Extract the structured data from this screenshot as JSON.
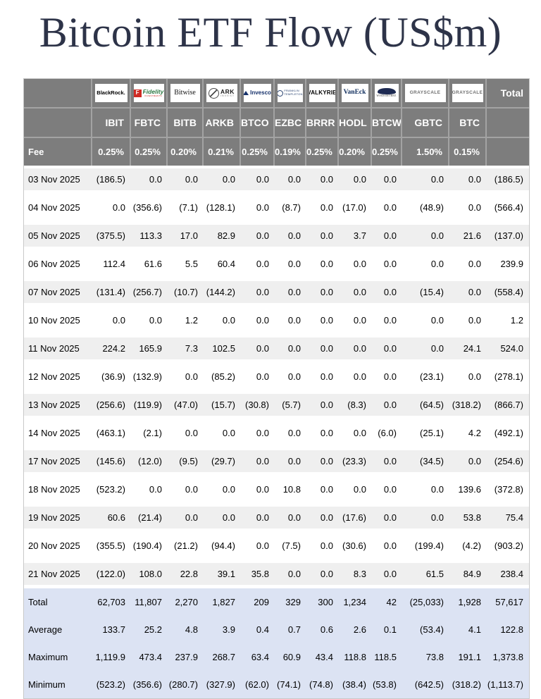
{
  "title": "Bitcoin ETF Flow (US$m)",
  "colors": {
    "negative": "#ee1111",
    "header_bg": "#7d7d7d",
    "row_alt_bg": "#efefef",
    "summary_bg": "#dce3f3",
    "title_text": "#2d3348"
  },
  "table": {
    "fee_label": "Fee",
    "total_label": "Total",
    "providers": [
      {
        "brand": "BlackRock",
        "ticker": "IBIT",
        "fee": "0.25%",
        "logo": {
          "style": "blackrock",
          "text": "BlackRock."
        }
      },
      {
        "brand": "Fidelity",
        "ticker": "FBTC",
        "fee": "0.25%",
        "logo": {
          "style": "fidelity",
          "icon_letter": "F",
          "text": "Fidelity",
          "subtext": "INVESTMENTS"
        }
      },
      {
        "brand": "Bitwise",
        "ticker": "BITB",
        "fee": "0.20%",
        "logo": {
          "style": "bitwise",
          "text": "Bitwise"
        }
      },
      {
        "brand": "ARK Invest",
        "ticker": "ARKB",
        "fee": "0.21%",
        "logo": {
          "style": "ark",
          "text": "ARK",
          "subtext": "INVEST"
        }
      },
      {
        "brand": "Invesco",
        "ticker": "BTCO",
        "fee": "0.25%",
        "logo": {
          "style": "invesco",
          "text": "Invesco"
        }
      },
      {
        "brand": "Franklin Templeton",
        "ticker": "EZBC",
        "fee": "0.19%",
        "logo": {
          "style": "franklin",
          "text": "FRANKLIN",
          "subtext": "TEMPLETON"
        }
      },
      {
        "brand": "Valkyrie",
        "ticker": "BRRR",
        "fee": "0.25%",
        "logo": {
          "style": "valkyrie",
          "text": "VALKYRIE"
        }
      },
      {
        "brand": "VanEck",
        "ticker": "HODL",
        "fee": "0.20%",
        "logo": {
          "style": "vaneck",
          "text": "VanEck"
        }
      },
      {
        "brand": "WisdomTree",
        "ticker": "BTCW",
        "fee": "0.25%",
        "logo": {
          "style": "wisdomtree",
          "text": "WISDOMTREE"
        }
      },
      {
        "brand": "Grayscale",
        "ticker": "GBTC",
        "fee": "1.50%",
        "logo": {
          "style": "grayscale",
          "text": "GRAYSCALE"
        }
      },
      {
        "brand": "Grayscale",
        "ticker": "BTC",
        "fee": "0.15%",
        "logo": {
          "style": "grayscale",
          "text": "GRAYSCALE"
        }
      }
    ],
    "rows": [
      {
        "label": "03 Nov 2025",
        "values": [
          "(186.5)",
          "0.0",
          "0.0",
          "0.0",
          "0.0",
          "0.0",
          "0.0",
          "0.0",
          "0.0",
          "0.0",
          "0.0",
          "(186.5)"
        ]
      },
      {
        "label": "04 Nov 2025",
        "values": [
          "0.0",
          "(356.6)",
          "(7.1)",
          "(128.1)",
          "0.0",
          "(8.7)",
          "0.0",
          "(17.0)",
          "0.0",
          "(48.9)",
          "0.0",
          "(566.4)"
        ]
      },
      {
        "label": "05 Nov 2025",
        "values": [
          "(375.5)",
          "113.3",
          "17.0",
          "82.9",
          "0.0",
          "0.0",
          "0.0",
          "3.7",
          "0.0",
          "0.0",
          "21.6",
          "(137.0)"
        ]
      },
      {
        "label": "06 Nov 2025",
        "values": [
          "112.4",
          "61.6",
          "5.5",
          "60.4",
          "0.0",
          "0.0",
          "0.0",
          "0.0",
          "0.0",
          "0.0",
          "0.0",
          "239.9"
        ]
      },
      {
        "label": "07 Nov 2025",
        "values": [
          "(131.4)",
          "(256.7)",
          "(10.7)",
          "(144.2)",
          "0.0",
          "0.0",
          "0.0",
          "0.0",
          "0.0",
          "(15.4)",
          "0.0",
          "(558.4)"
        ]
      },
      {
        "label": "10 Nov 2025",
        "values": [
          "0.0",
          "0.0",
          "1.2",
          "0.0",
          "0.0",
          "0.0",
          "0.0",
          "0.0",
          "0.0",
          "0.0",
          "0.0",
          "1.2"
        ]
      },
      {
        "label": "11 Nov 2025",
        "values": [
          "224.2",
          "165.9",
          "7.3",
          "102.5",
          "0.0",
          "0.0",
          "0.0",
          "0.0",
          "0.0",
          "0.0",
          "24.1",
          "524.0"
        ]
      },
      {
        "label": "12 Nov 2025",
        "values": [
          "(36.9)",
          "(132.9)",
          "0.0",
          "(85.2)",
          "0.0",
          "0.0",
          "0.0",
          "0.0",
          "0.0",
          "(23.1)",
          "0.0",
          "(278.1)"
        ]
      },
      {
        "label": "13 Nov 2025",
        "values": [
          "(256.6)",
          "(119.9)",
          "(47.0)",
          "(15.7)",
          "(30.8)",
          "(5.7)",
          "0.0",
          "(8.3)",
          "0.0",
          "(64.5)",
          "(318.2)",
          "(866.7)"
        ]
      },
      {
        "label": "14 Nov 2025",
        "values": [
          "(463.1)",
          "(2.1)",
          "0.0",
          "0.0",
          "0.0",
          "0.0",
          "0.0",
          "0.0",
          "(6.0)",
          "(25.1)",
          "4.2",
          "(492.1)"
        ]
      },
      {
        "label": "17 Nov 2025",
        "values": [
          "(145.6)",
          "(12.0)",
          "(9.5)",
          "(29.7)",
          "0.0",
          "0.0",
          "0.0",
          "(23.3)",
          "0.0",
          "(34.5)",
          "0.0",
          "(254.6)"
        ]
      },
      {
        "label": "18 Nov 2025",
        "values": [
          "(523.2)",
          "0.0",
          "0.0",
          "0.0",
          "0.0",
          "10.8",
          "0.0",
          "0.0",
          "0.0",
          "0.0",
          "139.6",
          "(372.8)"
        ]
      },
      {
        "label": "19 Nov 2025",
        "values": [
          "60.6",
          "(21.4)",
          "0.0",
          "0.0",
          "0.0",
          "0.0",
          "0.0",
          "(17.6)",
          "0.0",
          "0.0",
          "53.8",
          "75.4"
        ]
      },
      {
        "label": "20 Nov 2025",
        "values": [
          "(355.5)",
          "(190.4)",
          "(21.2)",
          "(94.4)",
          "0.0",
          "(7.5)",
          "0.0",
          "(30.6)",
          "0.0",
          "(199.4)",
          "(4.2)",
          "(903.2)"
        ]
      },
      {
        "label": "21 Nov 2025",
        "values": [
          "(122.0)",
          "108.0",
          "22.8",
          "39.1",
          "35.8",
          "0.0",
          "0.0",
          "8.3",
          "0.0",
          "61.5",
          "84.9",
          "238.4"
        ]
      }
    ],
    "summary": [
      {
        "label": "Total",
        "values": [
          "62,703",
          "11,807",
          "2,270",
          "1,827",
          "209",
          "329",
          "300",
          "1,234",
          "42",
          "(25,033)",
          "1,928",
          "57,617"
        ]
      },
      {
        "label": "Average",
        "values": [
          "133.7",
          "25.2",
          "4.8",
          "3.9",
          "0.4",
          "0.7",
          "0.6",
          "2.6",
          "0.1",
          "(53.4)",
          "4.1",
          "122.8"
        ]
      },
      {
        "label": "Maximum",
        "values": [
          "1,119.9",
          "473.4",
          "237.9",
          "268.7",
          "63.4",
          "60.9",
          "43.4",
          "118.8",
          "118.5",
          "73.8",
          "191.1",
          "1,373.8"
        ]
      },
      {
        "label": "Minimum",
        "values": [
          "(523.2)",
          "(356.6)",
          "(280.7)",
          "(327.9)",
          "(62.0)",
          "(74.1)",
          "(74.8)",
          "(38.4)",
          "(53.8)",
          "(642.5)",
          "(318.2)",
          "(1,113.7)"
        ]
      }
    ]
  }
}
